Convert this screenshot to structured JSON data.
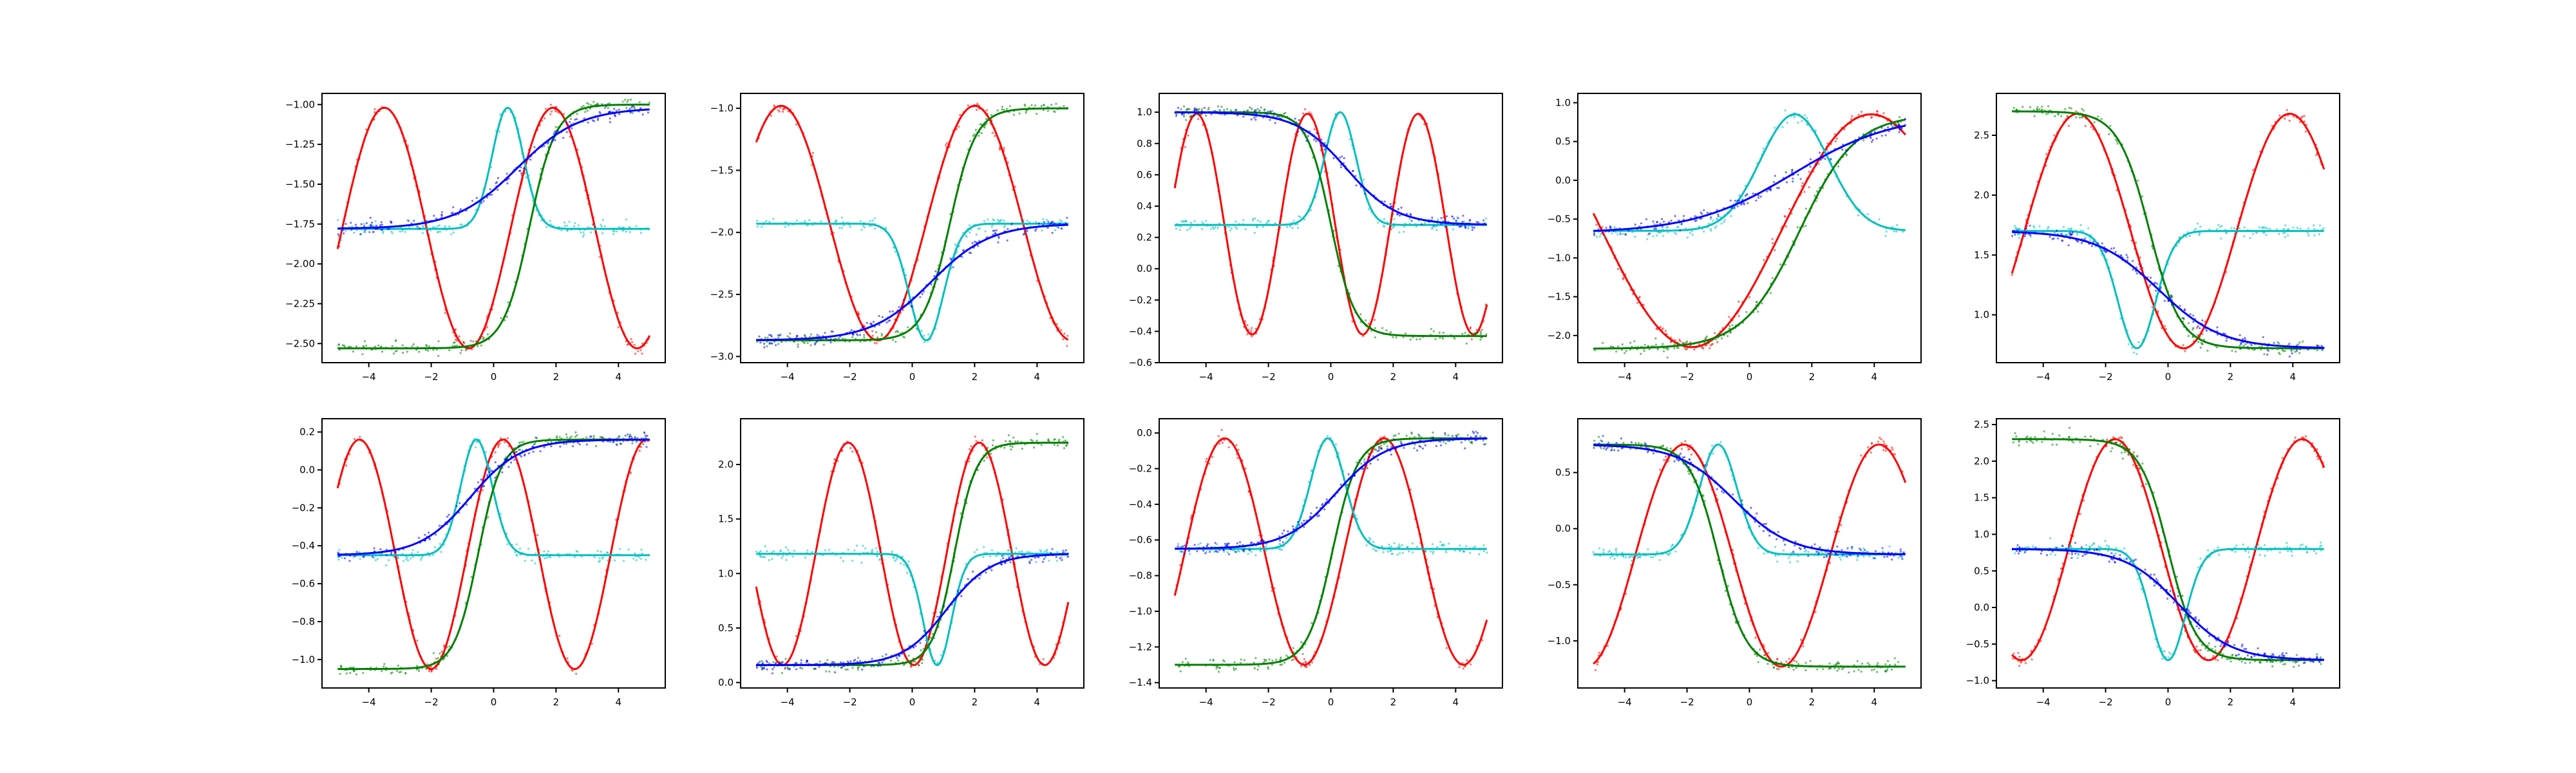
{
  "colors": {
    "sine": "#ff0000",
    "bump": "#00bfbf",
    "sigmoid": "#008000",
    "soft-sigmoid": "#0000ff"
  },
  "chart_data": [
    {
      "type": "line",
      "x_range": [
        -5,
        5
      ],
      "xticks": [
        -4,
        -2,
        0,
        2,
        4
      ],
      "ylim": [
        -2.62,
        -0.93
      ],
      "yticks": [
        -2.5,
        -2.25,
        -2.0,
        -1.75,
        -1.5,
        -1.25,
        -1.0
      ],
      "series": [
        {
          "kind": "sine",
          "color": "#ff0000",
          "lo": -2.53,
          "hi": -1.02,
          "period": 5.4,
          "peak_x": -3.5
        },
        {
          "kind": "bump",
          "color": "#00bfbf",
          "base": -1.78,
          "peak": -1.02,
          "center": 0.45,
          "width": 0.5
        },
        {
          "kind": "sigmoid",
          "color": "#008000",
          "start": -2.53,
          "end": -1.0,
          "center": 1.15,
          "scale": 0.42
        },
        {
          "kind": "sigmoid",
          "color": "#0000ff",
          "start": -1.78,
          "end": -1.02,
          "center": 0.75,
          "scale": 1.0
        }
      ]
    },
    {
      "type": "line",
      "x_range": [
        -5,
        5
      ],
      "xticks": [
        -4,
        -2,
        0,
        2,
        4
      ],
      "ylim": [
        -3.05,
        -0.88
      ],
      "yticks": [
        -3.0,
        -2.5,
        -2.0,
        -1.5,
        -1.0
      ],
      "series": [
        {
          "kind": "sine",
          "color": "#ff0000",
          "lo": -2.87,
          "hi": -0.98,
          "period": 6.2,
          "peak_x": -4.2
        },
        {
          "kind": "bump",
          "color": "#00bfbf",
          "base": -1.93,
          "peak": -2.87,
          "center": 0.45,
          "width": 0.55
        },
        {
          "kind": "sigmoid",
          "color": "#008000",
          "start": -2.87,
          "end": -1.0,
          "center": 1.2,
          "scale": 0.42
        },
        {
          "kind": "sigmoid",
          "color": "#0000ff",
          "start": -2.87,
          "end": -1.93,
          "center": 0.6,
          "scale": 0.95
        }
      ]
    },
    {
      "type": "line",
      "x_range": [
        -5,
        5
      ],
      "xticks": [
        -4,
        -2,
        0,
        2,
        4
      ],
      "ylim": [
        -0.6,
        1.12
      ],
      "yticks": [
        -0.6,
        -0.4,
        -0.2,
        0.0,
        0.2,
        0.4,
        0.6,
        0.8,
        1.0
      ],
      "series": [
        {
          "kind": "sine",
          "color": "#ff0000",
          "lo": -0.42,
          "hi": 0.99,
          "period": 3.55,
          "peak_x": -0.75
        },
        {
          "kind": "bump",
          "color": "#00bfbf",
          "base": 0.28,
          "peak": 1.0,
          "center": 0.3,
          "width": 0.5
        },
        {
          "kind": "sigmoid",
          "color": "#008000",
          "start": 1.0,
          "end": -0.43,
          "center": 0.0,
          "scale": 0.38
        },
        {
          "kind": "sigmoid",
          "color": "#0000ff",
          "start": 1.0,
          "end": 0.28,
          "center": 0.5,
          "scale": 0.8
        }
      ]
    },
    {
      "type": "line",
      "x_range": [
        -5,
        5
      ],
      "xticks": [
        -4,
        -2,
        0,
        2,
        4
      ],
      "ylim": [
        -2.35,
        1.12
      ],
      "yticks": [
        -2.0,
        -1.5,
        -1.0,
        -0.5,
        0.0,
        0.5,
        1.0
      ],
      "series": [
        {
          "kind": "sine",
          "color": "#ff0000",
          "lo": -2.15,
          "hi": 0.85,
          "period": 11.5,
          "peak_x": 3.9
        },
        {
          "kind": "bump",
          "color": "#00bfbf",
          "base": -0.65,
          "peak": 0.85,
          "center": 1.45,
          "width": 1.1
        },
        {
          "kind": "sigmoid",
          "color": "#008000",
          "start": -2.17,
          "end": 0.85,
          "center": 1.6,
          "scale": 0.9
        },
        {
          "kind": "sigmoid",
          "color": "#0000ff",
          "start": -0.68,
          "end": 0.85,
          "center": 1.4,
          "scale": 1.6
        }
      ]
    },
    {
      "type": "line",
      "x_range": [
        -5,
        5
      ],
      "xticks": [
        -4,
        -2,
        0,
        2,
        4
      ],
      "ylim": [
        0.6,
        2.85
      ],
      "yticks": [
        1.0,
        1.5,
        2.0,
        2.5
      ],
      "series": [
        {
          "kind": "sine",
          "color": "#ff0000",
          "lo": 0.72,
          "hi": 2.68,
          "period": 6.8,
          "peak_x": -2.9
        },
        {
          "kind": "bump",
          "color": "#00bfbf",
          "base": 1.7,
          "peak": 0.72,
          "center": -1.0,
          "width": 0.6
        },
        {
          "kind": "sigmoid",
          "color": "#008000",
          "start": 2.7,
          "end": 0.72,
          "center": -0.6,
          "scale": 0.5
        },
        {
          "kind": "sigmoid",
          "color": "#0000ff",
          "start": 1.7,
          "end": 0.72,
          "center": -0.3,
          "scale": 1.0
        }
      ]
    },
    {
      "type": "line",
      "x_range": [
        -5,
        5
      ],
      "xticks": [
        -4,
        -2,
        0,
        2,
        4
      ],
      "ylim": [
        -1.15,
        0.27
      ],
      "yticks": [
        -1.0,
        -0.8,
        -0.6,
        -0.4,
        -0.2,
        0.0,
        0.2
      ],
      "series": [
        {
          "kind": "sine",
          "color": "#ff0000",
          "lo": -1.05,
          "hi": 0.16,
          "period": 4.6,
          "peak_x": -4.3
        },
        {
          "kind": "bump",
          "color": "#00bfbf",
          "base": -0.45,
          "peak": 0.16,
          "center": -0.55,
          "width": 0.5
        },
        {
          "kind": "sigmoid",
          "color": "#008000",
          "start": -1.05,
          "end": 0.16,
          "center": -0.5,
          "scale": 0.38
        },
        {
          "kind": "sigmoid",
          "color": "#0000ff",
          "start": -0.45,
          "end": 0.16,
          "center": -0.75,
          "scale": 0.8
        }
      ]
    },
    {
      "type": "line",
      "x_range": [
        -5,
        5
      ],
      "xticks": [
        -4,
        -2,
        0,
        2,
        4
      ],
      "ylim": [
        -0.05,
        2.42
      ],
      "yticks": [
        0.0,
        0.5,
        1.0,
        1.5,
        2.0
      ],
      "series": [
        {
          "kind": "sine",
          "color": "#ff0000",
          "lo": 0.16,
          "hi": 2.2,
          "period": 4.2,
          "peak_x": -2.05
        },
        {
          "kind": "bump",
          "color": "#00bfbf",
          "base": 1.18,
          "peak": 0.16,
          "center": 0.8,
          "width": 0.45
        },
        {
          "kind": "sigmoid",
          "color": "#008000",
          "start": 0.16,
          "end": 2.2,
          "center": 1.35,
          "scale": 0.35
        },
        {
          "kind": "sigmoid",
          "color": "#0000ff",
          "start": 0.16,
          "end": 1.18,
          "center": 1.1,
          "scale": 0.7
        }
      ]
    },
    {
      "type": "line",
      "x_range": [
        -5,
        5
      ],
      "xticks": [
        -4,
        -2,
        0,
        2,
        4
      ],
      "ylim": [
        -1.43,
        0.08
      ],
      "yticks": [
        -1.4,
        -1.2,
        -1.0,
        -0.8,
        -0.6,
        -0.4,
        -0.2,
        0.0
      ],
      "series": [
        {
          "kind": "sine",
          "color": "#ff0000",
          "lo": -1.3,
          "hi": -0.03,
          "period": 5.1,
          "peak_x": -3.4
        },
        {
          "kind": "bump",
          "color": "#00bfbf",
          "base": -0.65,
          "peak": -0.03,
          "center": -0.1,
          "width": 0.55
        },
        {
          "kind": "sigmoid",
          "color": "#008000",
          "start": -1.3,
          "end": -0.03,
          "center": 0.05,
          "scale": 0.4
        },
        {
          "kind": "sigmoid",
          "color": "#0000ff",
          "start": -0.65,
          "end": -0.03,
          "center": 0.15,
          "scale": 0.8
        }
      ]
    },
    {
      "type": "line",
      "x_range": [
        -5,
        5
      ],
      "xticks": [
        -4,
        -2,
        0,
        2,
        4
      ],
      "ylim": [
        -1.42,
        0.98
      ],
      "yticks": [
        -1.0,
        -0.5,
        0.0,
        0.5
      ],
      "series": [
        {
          "kind": "sine",
          "color": "#ff0000",
          "lo": -1.23,
          "hi": 0.75,
          "period": 6.25,
          "peak_x": -2.1
        },
        {
          "kind": "bump",
          "color": "#00bfbf",
          "base": -0.23,
          "peak": 0.75,
          "center": -1.0,
          "width": 0.6
        },
        {
          "kind": "sigmoid",
          "color": "#008000",
          "start": 0.75,
          "end": -1.23,
          "center": -1.0,
          "scale": 0.45
        },
        {
          "kind": "sigmoid",
          "color": "#0000ff",
          "start": 0.75,
          "end": -0.23,
          "center": -0.5,
          "scale": 0.9
        }
      ]
    },
    {
      "type": "line",
      "x_range": [
        -5,
        5
      ],
      "xticks": [
        -4,
        -2,
        0,
        2,
        4
      ],
      "ylim": [
        -1.1,
        2.58
      ],
      "yticks": [
        -1.0,
        -0.5,
        0.0,
        0.5,
        1.0,
        1.5,
        2.0,
        2.5
      ],
      "series": [
        {
          "kind": "sine",
          "color": "#ff0000",
          "lo": -0.72,
          "hi": 2.3,
          "period": 6.0,
          "peak_x": -1.7
        },
        {
          "kind": "bump",
          "color": "#00bfbf",
          "base": 0.8,
          "peak": -0.72,
          "center": 0.0,
          "width": 0.55
        },
        {
          "kind": "sigmoid",
          "color": "#008000",
          "start": 2.3,
          "end": -0.72,
          "center": 0.0,
          "scale": 0.45
        },
        {
          "kind": "sigmoid",
          "color": "#0000ff",
          "start": 0.8,
          "end": -0.72,
          "center": 0.35,
          "scale": 0.85
        }
      ]
    }
  ]
}
